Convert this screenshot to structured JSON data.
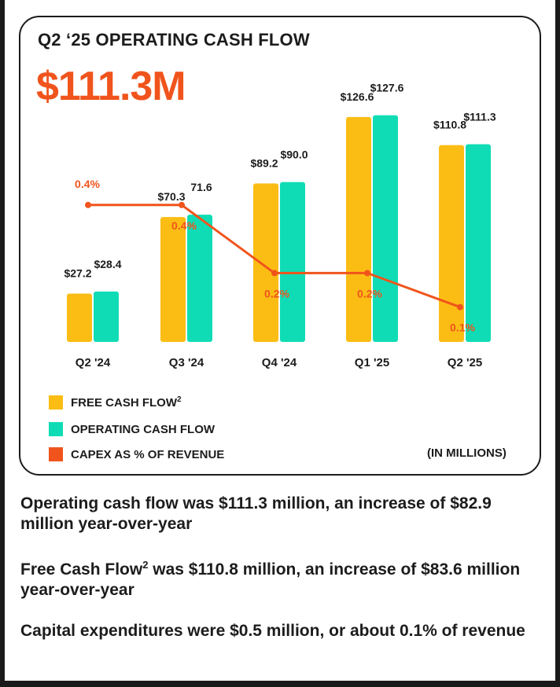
{
  "card": {
    "kicker": "Q2 ‘25 OPERATING CASH FLOW",
    "headline": "$111.3M",
    "units_note": "(IN MILLIONS)"
  },
  "colors": {
    "free_cash_flow": "#fbbd14",
    "operating_cash_flow": "#0fdcb5",
    "capex": "#f0541c",
    "text": "#1c1c1c"
  },
  "chart_data": {
    "type": "bar",
    "categories": [
      "Q2 '24",
      "Q3 '24",
      "Q4 '24",
      "Q1 '25",
      "Q2 '25"
    ],
    "series": [
      {
        "name": "FREE CASH FLOW",
        "name_superscript": "2",
        "kind": "bar",
        "color": "#fbbd14",
        "values": [
          27.2,
          70.3,
          89.2,
          126.6,
          110.8
        ],
        "labels": [
          "$27.2",
          "$70.3",
          "$89.2",
          "$126.6",
          "$110.8"
        ]
      },
      {
        "name": "OPERATING CASH FLOW",
        "kind": "bar",
        "color": "#0fdcb5",
        "values": [
          28.4,
          71.6,
          90.0,
          127.6,
          111.3
        ],
        "labels": [
          "$28.4",
          "71.6",
          "$90.0",
          "$127.6",
          "$111.3"
        ]
      },
      {
        "name": "CAPEX AS % OF REVENUE",
        "kind": "line",
        "color": "#f0541c",
        "values": [
          0.4,
          0.4,
          0.2,
          0.2,
          0.1
        ],
        "labels": [
          "0.4%",
          "0.4%",
          "0.2%",
          "0.2%",
          "0.1%"
        ]
      }
    ],
    "bar_axis_range": [
      0,
      130
    ],
    "line_axis_range": [
      0,
      0.6
    ],
    "grid": false,
    "legend_placement": "bottom-left"
  },
  "notes": [
    {
      "text": "Operating cash flow was $111.3 million, an increase of $82.9 million year-over-year"
    },
    {
      "before": "Free Cash Flow",
      "sup": "2",
      "after": " was $110.8 million, an increase of $83.6 million year-over-year"
    },
    {
      "text": "Capital expenditures were $0.5 million, or about 0.1% of revenue"
    }
  ]
}
